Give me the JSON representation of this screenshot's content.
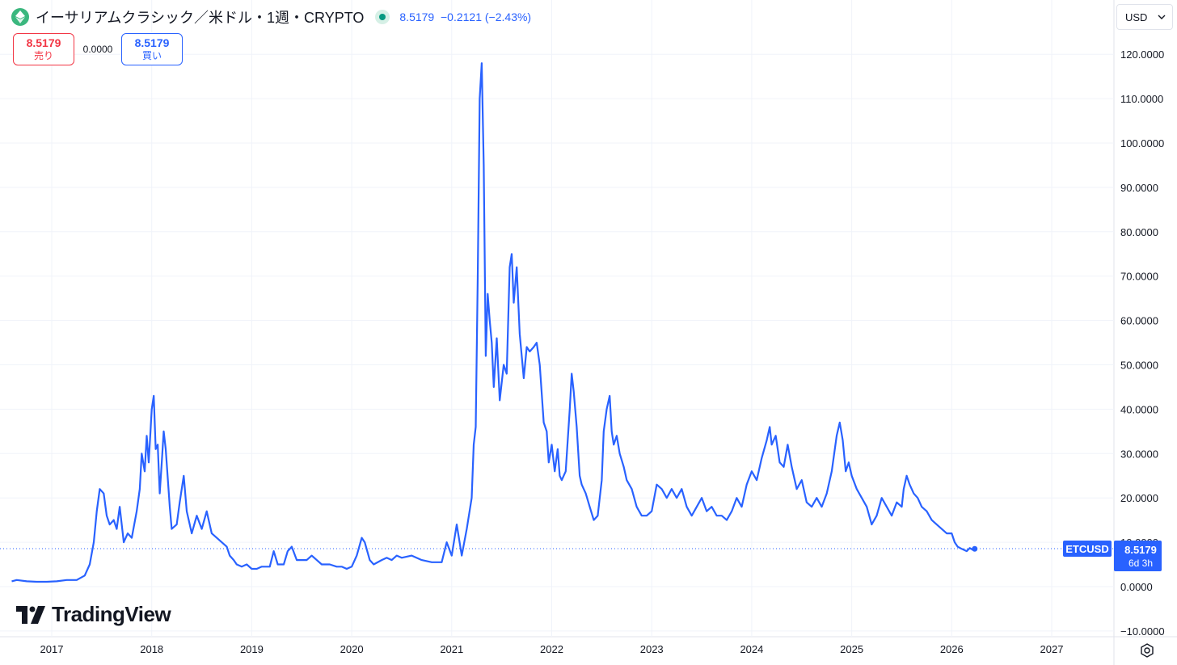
{
  "header": {
    "title": "イーサリアムクラシック／米ドル・1週・CRYPTO",
    "price": "8.5179",
    "change": "−0.2121",
    "change_pct": "(−2.43%)",
    "symbol_icon": "ethereum-classic-icon",
    "market_status": "market-open-dot"
  },
  "trade": {
    "sell_price": "8.5179",
    "sell_label": "売り",
    "spread": "0.0000",
    "buy_price": "8.5179",
    "buy_label": "買い"
  },
  "currency": {
    "label": "USD",
    "icon": "chevron-down-icon"
  },
  "logo": {
    "text": "TradingView"
  },
  "price_tag": {
    "symbol": "ETCUSD",
    "value": "8.5179",
    "countdown": "6d 3h"
  },
  "colors": {
    "line": "#2962ff",
    "text": "#131722",
    "grid": "#f0f3fa",
    "sell": "#f23645",
    "axis_text": "#131722"
  },
  "chart_data": {
    "type": "line",
    "title": "",
    "xlabel": "",
    "ylabel": "",
    "x_ticks": [
      "2017",
      "2018",
      "2019",
      "2020",
      "2021",
      "2022",
      "2023",
      "2024",
      "2025",
      "2026",
      "2027"
    ],
    "y_ticks": [
      "120.0000",
      "110.0000",
      "100.0000",
      "90.0000",
      "80.0000",
      "70.0000",
      "60.0000",
      "50.0000",
      "40.0000",
      "30.0000",
      "20.0000",
      "10.0000",
      "0.0000",
      "−10.0000"
    ],
    "ylim": [
      -10,
      120
    ],
    "xlim": [
      2016.6,
      2027.6
    ],
    "grid": true,
    "current_value": 8.5179,
    "series": [
      {
        "name": "",
        "points": [
          [
            2016.6,
            1.2
          ],
          [
            2016.65,
            1.5
          ],
          [
            2016.75,
            1.2
          ],
          [
            2016.85,
            1.1
          ],
          [
            2016.95,
            1.1
          ],
          [
            2017.05,
            1.2
          ],
          [
            2017.15,
            1.5
          ],
          [
            2017.25,
            1.5
          ],
          [
            2017.33,
            2.5
          ],
          [
            2017.38,
            5
          ],
          [
            2017.42,
            10
          ],
          [
            2017.45,
            17
          ],
          [
            2017.48,
            22
          ],
          [
            2017.52,
            21
          ],
          [
            2017.55,
            16
          ],
          [
            2017.58,
            14
          ],
          [
            2017.62,
            15
          ],
          [
            2017.65,
            13
          ],
          [
            2017.68,
            18
          ],
          [
            2017.72,
            10
          ],
          [
            2017.76,
            12
          ],
          [
            2017.8,
            11
          ],
          [
            2017.85,
            17
          ],
          [
            2017.88,
            22
          ],
          [
            2017.9,
            30
          ],
          [
            2017.93,
            26
          ],
          [
            2017.95,
            34
          ],
          [
            2017.97,
            28
          ],
          [
            2018.0,
            40
          ],
          [
            2018.02,
            43
          ],
          [
            2018.04,
            31
          ],
          [
            2018.06,
            32
          ],
          [
            2018.08,
            21
          ],
          [
            2018.1,
            28
          ],
          [
            2018.12,
            35
          ],
          [
            2018.14,
            31
          ],
          [
            2018.18,
            18
          ],
          [
            2018.2,
            13
          ],
          [
            2018.25,
            14
          ],
          [
            2018.28,
            19
          ],
          [
            2018.32,
            25
          ],
          [
            2018.35,
            17
          ],
          [
            2018.4,
            12
          ],
          [
            2018.45,
            16
          ],
          [
            2018.5,
            13
          ],
          [
            2018.55,
            17
          ],
          [
            2018.6,
            12
          ],
          [
            2018.65,
            11
          ],
          [
            2018.7,
            10
          ],
          [
            2018.75,
            9
          ],
          [
            2018.78,
            7
          ],
          [
            2018.82,
            6
          ],
          [
            2018.85,
            5
          ],
          [
            2018.9,
            4.5
          ],
          [
            2018.95,
            5
          ],
          [
            2019.0,
            4
          ],
          [
            2019.05,
            4
          ],
          [
            2019.1,
            4.5
          ],
          [
            2019.18,
            4.5
          ],
          [
            2019.22,
            8
          ],
          [
            2019.26,
            5
          ],
          [
            2019.32,
            5
          ],
          [
            2019.36,
            8
          ],
          [
            2019.4,
            9
          ],
          [
            2019.45,
            6
          ],
          [
            2019.5,
            6
          ],
          [
            2019.55,
            6
          ],
          [
            2019.6,
            7
          ],
          [
            2019.65,
            6
          ],
          [
            2019.7,
            5
          ],
          [
            2019.78,
            5
          ],
          [
            2019.85,
            4.5
          ],
          [
            2019.9,
            4.5
          ],
          [
            2019.95,
            4
          ],
          [
            2020.0,
            4.5
          ],
          [
            2020.05,
            7
          ],
          [
            2020.1,
            11
          ],
          [
            2020.13,
            10
          ],
          [
            2020.18,
            6
          ],
          [
            2020.22,
            5
          ],
          [
            2020.3,
            6
          ],
          [
            2020.35,
            6.5
          ],
          [
            2020.4,
            6
          ],
          [
            2020.45,
            7
          ],
          [
            2020.5,
            6.5
          ],
          [
            2020.6,
            7
          ],
          [
            2020.7,
            6
          ],
          [
            2020.8,
            5.5
          ],
          [
            2020.9,
            5.5
          ],
          [
            2020.95,
            10
          ],
          [
            2021.0,
            7
          ],
          [
            2021.05,
            14
          ],
          [
            2021.1,
            7
          ],
          [
            2021.15,
            13
          ],
          [
            2021.2,
            20
          ],
          [
            2021.22,
            32
          ],
          [
            2021.24,
            36
          ],
          [
            2021.26,
            70
          ],
          [
            2021.28,
            110
          ],
          [
            2021.3,
            118
          ],
          [
            2021.32,
            95
          ],
          [
            2021.34,
            52
          ],
          [
            2021.36,
            66
          ],
          [
            2021.38,
            60
          ],
          [
            2021.4,
            55
          ],
          [
            2021.42,
            45
          ],
          [
            2021.45,
            56
          ],
          [
            2021.48,
            42
          ],
          [
            2021.52,
            50
          ],
          [
            2021.55,
            48
          ],
          [
            2021.58,
            72
          ],
          [
            2021.6,
            75
          ],
          [
            2021.62,
            64
          ],
          [
            2021.65,
            72
          ],
          [
            2021.68,
            57
          ],
          [
            2021.72,
            47
          ],
          [
            2021.75,
            54
          ],
          [
            2021.78,
            53
          ],
          [
            2021.82,
            54
          ],
          [
            2021.85,
            55
          ],
          [
            2021.88,
            50
          ],
          [
            2021.92,
            37
          ],
          [
            2021.95,
            35
          ],
          [
            2021.97,
            28
          ],
          [
            2022.0,
            32
          ],
          [
            2022.03,
            26
          ],
          [
            2022.06,
            31
          ],
          [
            2022.08,
            25
          ],
          [
            2022.1,
            24
          ],
          [
            2022.14,
            26
          ],
          [
            2022.18,
            40
          ],
          [
            2022.2,
            48
          ],
          [
            2022.22,
            44
          ],
          [
            2022.25,
            36
          ],
          [
            2022.28,
            25
          ],
          [
            2022.3,
            23
          ],
          [
            2022.34,
            21
          ],
          [
            2022.38,
            18
          ],
          [
            2022.42,
            15
          ],
          [
            2022.46,
            16
          ],
          [
            2022.5,
            24
          ],
          [
            2022.52,
            35
          ],
          [
            2022.55,
            40
          ],
          [
            2022.58,
            43
          ],
          [
            2022.6,
            35
          ],
          [
            2022.62,
            32
          ],
          [
            2022.65,
            34
          ],
          [
            2022.68,
            30
          ],
          [
            2022.72,
            27
          ],
          [
            2022.75,
            24
          ],
          [
            2022.8,
            22
          ],
          [
            2022.85,
            18
          ],
          [
            2022.9,
            16
          ],
          [
            2022.95,
            16
          ],
          [
            2023.0,
            17
          ],
          [
            2023.05,
            23
          ],
          [
            2023.1,
            22
          ],
          [
            2023.15,
            20
          ],
          [
            2023.2,
            22
          ],
          [
            2023.25,
            20
          ],
          [
            2023.3,
            22
          ],
          [
            2023.35,
            18
          ],
          [
            2023.4,
            16
          ],
          [
            2023.45,
            18
          ],
          [
            2023.5,
            20
          ],
          [
            2023.55,
            17
          ],
          [
            2023.6,
            18
          ],
          [
            2023.65,
            16
          ],
          [
            2023.7,
            16
          ],
          [
            2023.75,
            15
          ],
          [
            2023.8,
            17
          ],
          [
            2023.85,
            20
          ],
          [
            2023.9,
            18
          ],
          [
            2023.95,
            23
          ],
          [
            2024.0,
            26
          ],
          [
            2024.05,
            24
          ],
          [
            2024.1,
            29
          ],
          [
            2024.15,
            33
          ],
          [
            2024.18,
            36
          ],
          [
            2024.2,
            32
          ],
          [
            2024.24,
            34
          ],
          [
            2024.28,
            28
          ],
          [
            2024.32,
            27
          ],
          [
            2024.36,
            32
          ],
          [
            2024.4,
            27
          ],
          [
            2024.45,
            22
          ],
          [
            2024.5,
            24
          ],
          [
            2024.55,
            19
          ],
          [
            2024.6,
            18
          ],
          [
            2024.65,
            20
          ],
          [
            2024.7,
            18
          ],
          [
            2024.75,
            21
          ],
          [
            2024.8,
            26
          ],
          [
            2024.85,
            34
          ],
          [
            2024.88,
            37
          ],
          [
            2024.91,
            33
          ],
          [
            2024.94,
            26
          ],
          [
            2024.97,
            28
          ],
          [
            2025.0,
            25
          ],
          [
            2025.05,
            22
          ],
          [
            2025.1,
            20
          ],
          [
            2025.15,
            18
          ],
          [
            2025.2,
            14
          ],
          [
            2025.25,
            16
          ],
          [
            2025.3,
            20
          ],
          [
            2025.35,
            18
          ],
          [
            2025.4,
            16
          ],
          [
            2025.45,
            19
          ],
          [
            2025.5,
            18
          ],
          [
            2025.52,
            22
          ],
          [
            2025.55,
            25
          ],
          [
            2025.58,
            23
          ],
          [
            2025.62,
            21
          ],
          [
            2025.66,
            20
          ],
          [
            2025.7,
            18
          ],
          [
            2025.75,
            17
          ],
          [
            2025.8,
            15
          ],
          [
            2025.85,
            14
          ],
          [
            2025.9,
            13
          ],
          [
            2025.95,
            12
          ],
          [
            2026.0,
            12
          ],
          [
            2026.03,
            10
          ],
          [
            2026.06,
            9
          ],
          [
            2026.1,
            8.5
          ],
          [
            2026.15,
            8
          ],
          [
            2026.18,
            8.7
          ],
          [
            2026.21,
            8.3
          ],
          [
            2026.23,
            8.52
          ]
        ]
      }
    ]
  }
}
